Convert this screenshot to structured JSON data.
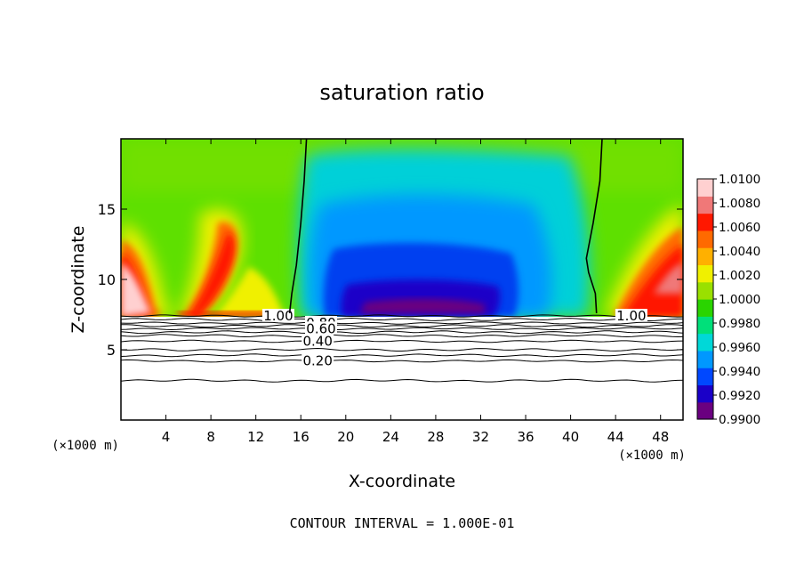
{
  "chart_data": {
    "type": "heatmap",
    "title": "saturation ratio",
    "xlabel": "X-coordinate",
    "ylabel": "Z-coordinate",
    "x_unit": "(×1000 m)",
    "y_unit": "(×1000 m)",
    "xlim": [
      0,
      50
    ],
    "ylim": [
      0,
      20
    ],
    "x_ticks": [
      4,
      8,
      12,
      16,
      20,
      24,
      28,
      32,
      36,
      40,
      44,
      48
    ],
    "y_ticks": [
      5,
      10,
      15
    ],
    "colorbar": {
      "min": 0.99,
      "max": 1.01,
      "tick_labels": [
        "1.0100",
        "1.0080",
        "1.0060",
        "1.0040",
        "1.0020",
        "1.0000",
        "0.9980",
        "0.9960",
        "0.9940",
        "0.9920",
        "0.9900"
      ],
      "colors": [
        "#6a0080",
        "#1a00c8",
        "#0048ff",
        "#0098ff",
        "#00d8d8",
        "#00e07a",
        "#2ad400",
        "#9ae000",
        "#f0f000",
        "#ffb000",
        "#ff6a00",
        "#ff1800",
        "#f07878",
        "#ffd0d0"
      ]
    },
    "cloud_base_z": 7.4,
    "contour_lines": [
      {
        "label": "1.00",
        "z": 7.4
      },
      {
        "label": "0.80",
        "z": 6.9
      },
      {
        "label": "0.60",
        "z": 6.5
      },
      {
        "label": "0.40",
        "z": 5.6
      },
      {
        "label": "0.20",
        "z": 4.2
      }
    ],
    "unlabeled_contour_z": [
      7.15,
      6.7,
      6.25,
      6.0,
      5.0,
      4.6,
      2.8
    ],
    "s_equals_one_boundaries": [
      {
        "name": "left",
        "points": [
          [
            16.5,
            20
          ],
          [
            16.3,
            17
          ],
          [
            16.0,
            14
          ],
          [
            15.6,
            11
          ],
          [
            15.2,
            9
          ],
          [
            15.0,
            7.6
          ]
        ]
      },
      {
        "name": "right",
        "points": [
          [
            42.8,
            20
          ],
          [
            42.6,
            17
          ],
          [
            42.0,
            14
          ],
          [
            41.4,
            11.5
          ],
          [
            41.6,
            10.5
          ],
          [
            42.2,
            9
          ],
          [
            42.3,
            7.6
          ]
        ]
      }
    ],
    "annotation": "CONTOUR INTERVAL = 1.000E-01"
  }
}
